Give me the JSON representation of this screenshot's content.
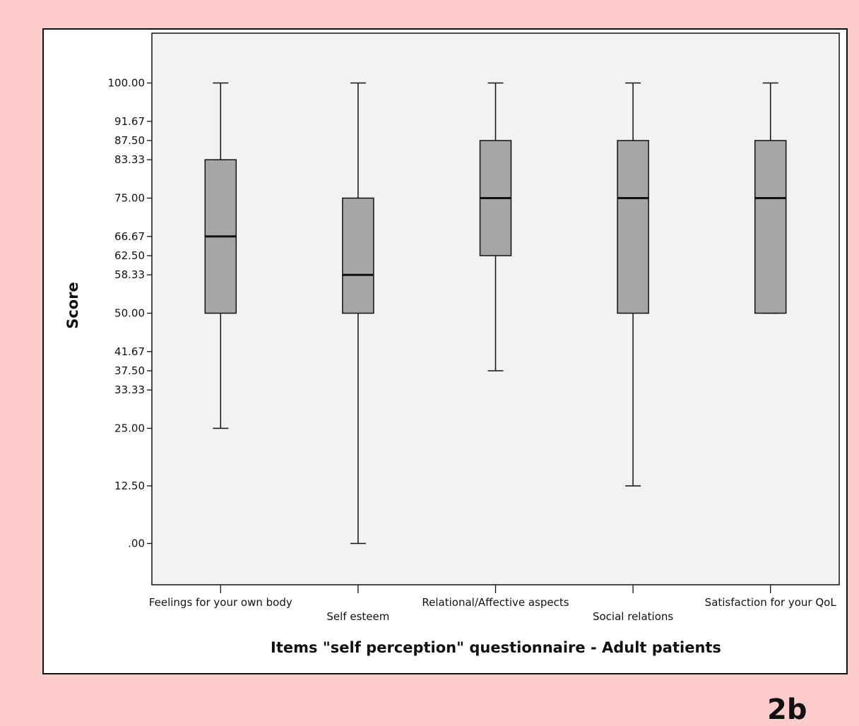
{
  "figure_label": "2b",
  "colors": {
    "page_background": "#ffcccc",
    "frame_background": "#ffffff",
    "plot_background": "#f2f2f2",
    "box_fill": "#a6a6a6",
    "stroke": "#111111"
  },
  "chart_data": {
    "type": "boxplot",
    "title": "",
    "xlabel": "Items \"self perception\" questionnaire - Adult patients",
    "ylabel": "Score",
    "ylim": [
      -10,
      110
    ],
    "yticks": [
      0,
      12.5,
      25,
      33.33,
      37.5,
      41.67,
      50,
      58.33,
      62.5,
      66.67,
      75,
      83.33,
      87.5,
      91.67,
      100
    ],
    "ytick_labels": [
      ".00",
      "12.50",
      "25.00",
      "33.33",
      "37.50",
      "41.67",
      "50.00",
      "58.33",
      "62.50",
      "66.67",
      "75.00",
      "83.33",
      "87.50",
      "91.67",
      "100.00"
    ],
    "grid": false,
    "categories": [
      "Feelings for your own body",
      "Self esteem",
      "Relational/Affective aspects",
      "Social relations",
      "Satisfaction for your QoL"
    ],
    "boxes": [
      {
        "category": "Feelings for your own body",
        "min": 25,
        "q1": 50,
        "median": 66.67,
        "q3": 83.33,
        "max": 100
      },
      {
        "category": "Self esteem",
        "min": 0,
        "q1": 50,
        "median": 58.33,
        "q3": 75,
        "max": 100
      },
      {
        "category": "Relational/Affective aspects",
        "min": 37.5,
        "q1": 62.5,
        "median": 75,
        "q3": 87.5,
        "max": 100
      },
      {
        "category": "Social relations",
        "min": 12.5,
        "q1": 50,
        "median": 75,
        "q3": 87.5,
        "max": 100
      },
      {
        "category": "Satisfaction for your QoL",
        "min": 50,
        "q1": 50,
        "median": 75,
        "q3": 87.5,
        "max": 100
      }
    ]
  }
}
